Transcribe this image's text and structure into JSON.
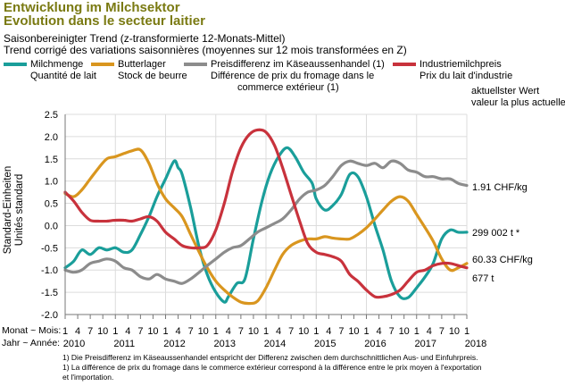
{
  "header": {
    "title_de": "Entwicklung im Milchsektor",
    "title_fr": "Evolution dans le secteur laitier",
    "subtitle_de": "Saisonbereinigter Trend (z-transformierte 12-Monats-Mittel)",
    "subtitle_fr": "Trend corrigé des variations saisonnières (moyennes sur 12 mois transformées en Z)"
  },
  "legend": [
    {
      "line1": "Milchmenge",
      "line2": "Quantité de lait",
      "line3": "",
      "color": "#1a9e9a"
    },
    {
      "line1": "Butterlager",
      "line2": "Stock de beurre",
      "line3": "",
      "color": "#d9961f"
    },
    {
      "line1": "Preisdifferenz im Käseaussenhandel (1)",
      "line2": "Différence de prix du fromage dans le",
      "line3": "commerce extérieur (1)",
      "color": "#8c8c8c"
    },
    {
      "line1": "Industriemilchpreis",
      "line2": "Prix du lait d'industrie",
      "line3": "",
      "color": "#c8323c"
    }
  ],
  "latest": {
    "heading_de": "aktuellster Wert",
    "heading_fr": "valeur la plus actuelle",
    "gray": "1.91 CHF/kg",
    "teal": "299 002 t *",
    "red": "60.33 CHF/kg",
    "orange": "677 t"
  },
  "axis": {
    "ylabel_de": "Standard-Einheiten",
    "ylabel_fr": "Unités standard",
    "month_label": "Monat ~ Mois:",
    "year_label": "Jahr ~ Année:",
    "yticks": [
      "2.5",
      "2.0",
      "1.5",
      "1.0",
      "0.5",
      "0.0",
      "-0.5",
      "-1.0",
      "-1.5",
      "-2.0"
    ],
    "years": [
      "2010",
      "2011",
      "2012",
      "2013",
      "2014",
      "2015",
      "2016",
      "2017",
      "2018"
    ],
    "month_ticks": [
      "1",
      "4",
      "7",
      "10"
    ]
  },
  "footnotes": [
    "1)  Die Preisdifferenz im Käseaussenhandel entspricht der Differenz zwischen dem durchschnittlichen Aus- und Einfuhrpreis.",
    "1)  La différence de prix du fromage dans le commerce extérieur correspond à la différence entre le prix moyen à l'exportation",
    "      et l'importation."
  ],
  "chart_data": {
    "type": "line",
    "title": "Entwicklung im Milchsektor / Evolution dans le secteur laitier",
    "xlabel": "Monat ~ Mois / Jahr ~ Année",
    "ylabel": "Standard-Einheiten / Unités standard",
    "ylim": [
      -2.0,
      2.5
    ],
    "xlim": [
      2010.0,
      2018.0
    ],
    "grid": true,
    "legend_position": "top",
    "series": [
      {
        "name": "Milchmenge / Quantité de lait",
        "color": "#1a9e9a",
        "x": [
          2010.0,
          2010.17,
          2010.33,
          2010.5,
          2010.67,
          2010.83,
          2011.0,
          2011.17,
          2011.33,
          2011.5,
          2011.67,
          2011.83,
          2012.0,
          2012.17,
          2012.25,
          2012.33,
          2012.5,
          2012.67,
          2012.83,
          2013.0,
          2013.17,
          2013.25,
          2013.42,
          2013.58,
          2013.75,
          2013.92,
          2014.08,
          2014.25,
          2014.42,
          2014.58,
          2014.75,
          2014.92,
          2015.0,
          2015.17,
          2015.33,
          2015.5,
          2015.67,
          2015.83,
          2016.0,
          2016.17,
          2016.33,
          2016.5,
          2016.67,
          2016.83,
          2017.0,
          2017.17,
          2017.33,
          2017.5,
          2017.67,
          2017.83,
          2018.0
        ],
        "y": [
          -0.95,
          -0.8,
          -0.55,
          -0.65,
          -0.5,
          -0.55,
          -0.5,
          -0.6,
          -0.55,
          -0.2,
          0.2,
          0.65,
          1.05,
          1.45,
          1.3,
          1.15,
          0.4,
          -0.5,
          -1.1,
          -1.5,
          -1.72,
          -1.6,
          -1.3,
          -1.2,
          -0.3,
          0.55,
          1.15,
          1.55,
          1.75,
          1.55,
          1.2,
          0.95,
          0.6,
          0.35,
          0.45,
          0.7,
          1.15,
          1.1,
          0.65,
          0.0,
          -0.55,
          -1.25,
          -1.6,
          -1.62,
          -1.4,
          -1.15,
          -0.85,
          -0.3,
          -0.1,
          -0.15,
          -0.15
        ]
      },
      {
        "name": "Butterlager / Stock de beurre",
        "color": "#d9961f",
        "x": [
          2010.0,
          2010.17,
          2010.33,
          2010.5,
          2010.67,
          2010.83,
          2011.0,
          2011.17,
          2011.33,
          2011.5,
          2011.67,
          2011.83,
          2012.0,
          2012.17,
          2012.33,
          2012.5,
          2012.67,
          2012.83,
          2013.0,
          2013.17,
          2013.33,
          2013.5,
          2013.67,
          2013.83,
          2014.0,
          2014.17,
          2014.33,
          2014.5,
          2014.67,
          2014.83,
          2015.0,
          2015.17,
          2015.33,
          2015.5,
          2015.67,
          2015.83,
          2016.0,
          2016.17,
          2016.33,
          2016.5,
          2016.67,
          2016.83,
          2017.0,
          2017.17,
          2017.33,
          2017.5,
          2017.67,
          2017.83,
          2018.0
        ],
        "y": [
          0.72,
          0.65,
          0.8,
          1.05,
          1.3,
          1.5,
          1.55,
          1.62,
          1.68,
          1.7,
          1.4,
          0.95,
          0.6,
          0.4,
          0.2,
          -0.2,
          -0.6,
          -0.95,
          -1.25,
          -1.45,
          -1.6,
          -1.72,
          -1.75,
          -1.7,
          -1.4,
          -1.0,
          -0.65,
          -0.45,
          -0.35,
          -0.3,
          -0.3,
          -0.25,
          -0.28,
          -0.3,
          -0.3,
          -0.2,
          -0.05,
          0.15,
          0.35,
          0.55,
          0.65,
          0.55,
          0.25,
          -0.05,
          -0.35,
          -0.75,
          -1.0,
          -0.95,
          -0.85
        ]
      },
      {
        "name": "Preisdifferenz im Käseaussenhandel (1) / Différence de prix du fromage dans le commerce extérieur (1)",
        "color": "#8c8c8c",
        "x": [
          2010.0,
          2010.17,
          2010.33,
          2010.5,
          2010.67,
          2010.83,
          2011.0,
          2011.17,
          2011.33,
          2011.5,
          2011.67,
          2011.83,
          2012.0,
          2012.17,
          2012.33,
          2012.5,
          2012.67,
          2012.83,
          2013.0,
          2013.17,
          2013.33,
          2013.5,
          2013.67,
          2013.83,
          2014.0,
          2014.17,
          2014.33,
          2014.5,
          2014.67,
          2014.83,
          2015.0,
          2015.17,
          2015.33,
          2015.5,
          2015.67,
          2015.83,
          2016.0,
          2016.17,
          2016.33,
          2016.5,
          2016.67,
          2016.83,
          2017.0,
          2017.17,
          2017.33,
          2017.5,
          2017.67,
          2017.83,
          2018.0
        ],
        "y": [
          -1.0,
          -1.05,
          -1.0,
          -0.85,
          -0.8,
          -0.75,
          -0.8,
          -0.95,
          -1.0,
          -1.15,
          -1.2,
          -1.1,
          -1.2,
          -1.25,
          -1.3,
          -1.2,
          -1.05,
          -0.9,
          -0.75,
          -0.6,
          -0.5,
          -0.45,
          -0.3,
          -0.15,
          -0.05,
          0.05,
          0.15,
          0.35,
          0.6,
          0.75,
          0.8,
          0.9,
          1.1,
          1.35,
          1.45,
          1.4,
          1.35,
          1.4,
          1.3,
          1.45,
          1.4,
          1.25,
          1.2,
          1.1,
          1.1,
          1.05,
          1.05,
          0.95,
          0.9
        ]
      },
      {
        "name": "Industriemilchpreis / Prix du lait d'industrie",
        "color": "#c8323c",
        "x": [
          2010.0,
          2010.17,
          2010.33,
          2010.5,
          2010.67,
          2010.83,
          2011.0,
          2011.17,
          2011.33,
          2011.5,
          2011.67,
          2011.83,
          2012.0,
          2012.17,
          2012.33,
          2012.5,
          2012.67,
          2012.83,
          2013.0,
          2013.17,
          2013.33,
          2013.5,
          2013.67,
          2013.83,
          2014.0,
          2014.17,
          2014.33,
          2014.5,
          2014.67,
          2014.83,
          2015.0,
          2015.17,
          2015.33,
          2015.5,
          2015.67,
          2015.83,
          2016.0,
          2016.17,
          2016.33,
          2016.5,
          2016.67,
          2016.83,
          2017.0,
          2017.17,
          2017.33,
          2017.5,
          2017.67,
          2017.83,
          2018.0
        ],
        "y": [
          0.75,
          0.55,
          0.3,
          0.12,
          0.1,
          0.1,
          0.12,
          0.12,
          0.1,
          0.15,
          0.2,
          0.1,
          -0.15,
          -0.3,
          -0.45,
          -0.5,
          -0.5,
          -0.45,
          -0.1,
          0.5,
          1.2,
          1.75,
          2.05,
          2.15,
          2.1,
          1.8,
          1.3,
          0.7,
          0.1,
          -0.4,
          -0.6,
          -0.65,
          -0.7,
          -0.8,
          -1.1,
          -1.25,
          -1.45,
          -1.6,
          -1.6,
          -1.55,
          -1.45,
          -1.25,
          -1.05,
          -1.0,
          -0.9,
          -0.85,
          -0.85,
          -0.9,
          -0.95
        ]
      }
    ]
  }
}
